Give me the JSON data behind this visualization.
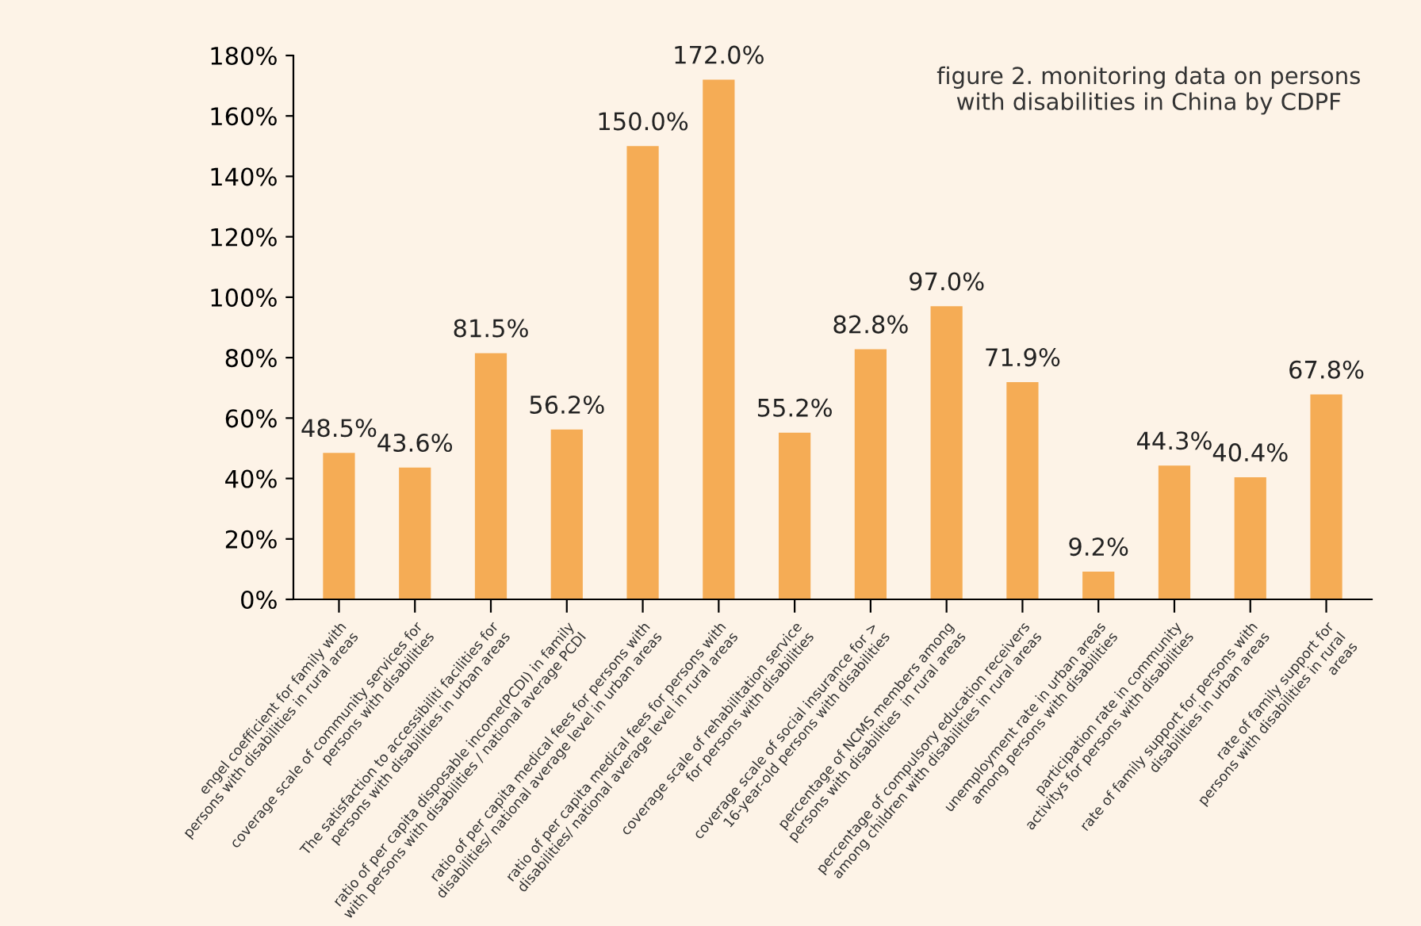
{
  "chart_data": {
    "type": "bar",
    "title": "figure 2. monitoring data on persons\nwith disabilities in China by CDPF",
    "categories": [
      "engel coefficient for family with\npersons with disabilities in rural areas",
      "coverage scale of community services for\npersons with disabilities",
      "The satisfaction to accessibiliti facilities for\npersons with disabilities in urban areas",
      "ratio of per capita disposable income(PCDI) in family\nwith persons with disabilities / national average PCDI",
      "ratio of per capita medical fees for persons with\ndisabilities/ national average level in urban areas",
      "ratio of per capita medical fees for persons with\ndisabilities/ national average level in rural areas",
      "coverage scale of rehabilitation service\nfor persons with disabilities",
      "coverage scale of social insurance for >\n16-year-old persons with disabilities",
      "percentage of NCMS members among\npersons with disabilities  in rural areas",
      "percentage of compulsory education receivers\namong children with disabilities in rural areas",
      "unemployment rate in urban areas\namong persons with disabilities",
      "participation rate in community\nactivitys for persons with disabilities",
      "rate of family support for persons with\ndisabilities in urban areas",
      "rate of family support for\npersons with disabilities in rural\nareas"
    ],
    "values": [
      48.5,
      43.6,
      81.5,
      56.2,
      150.0,
      172.0,
      55.2,
      82.8,
      97.0,
      71.9,
      9.2,
      44.3,
      40.4,
      67.8
    ],
    "color": "#f5ac55",
    "value_labels": [
      "48.5%",
      "43.6%",
      "81.5%",
      "56.2%",
      "150.0%",
      "172.0%",
      "55.2%",
      "82.8%",
      "97.0%",
      "71.9%",
      "9.2%",
      "44.3%",
      "40.4%",
      "67.8%"
    ],
    "ylim": [
      0,
      180
    ],
    "yticks": [
      {
        "value": 0,
        "label": "0%"
      },
      {
        "value": 20,
        "label": "20%"
      },
      {
        "value": 40,
        "label": "40%"
      },
      {
        "value": 60,
        "label": "60%"
      },
      {
        "value": 80,
        "label": "80%"
      },
      {
        "value": 100,
        "label": "100%"
      },
      {
        "value": 120,
        "label": "120%"
      },
      {
        "value": 140,
        "label": "140%"
      },
      {
        "value": 160,
        "label": "160%"
      },
      {
        "value": 180,
        "label": "180%"
      }
    ],
    "grid": false,
    "legend": false
  }
}
